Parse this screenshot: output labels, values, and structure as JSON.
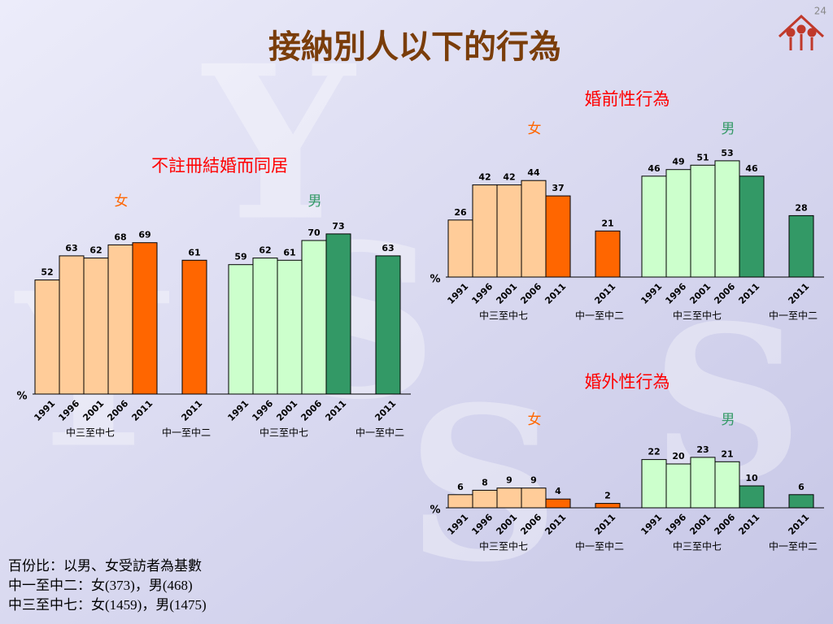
{
  "page_number": "24",
  "title": "接納別人以下的行為",
  "chart_data": [
    {
      "type": "bar",
      "title": "不註冊結婚而同居",
      "y_label": "%",
      "ylim": [
        0,
        80
      ],
      "categories": [
        "1991",
        "1996",
        "2001",
        "2006",
        "2011",
        "2011"
      ],
      "category_groups": [
        "中三至中七",
        "中一至中二"
      ],
      "series": [
        {
          "name": "女",
          "colors": [
            "#ffcc99",
            "#ffcc99",
            "#ffcc99",
            "#ffcc99",
            "#ff6600",
            "#ff6600"
          ],
          "values": [
            52,
            63,
            62,
            68,
            69,
            61
          ]
        },
        {
          "name": "男",
          "colors": [
            "#ccffcc",
            "#ccffcc",
            "#ccffcc",
            "#ccffcc",
            "#339966",
            "#339966"
          ],
          "values": [
            59,
            62,
            61,
            70,
            73,
            63
          ]
        }
      ]
    },
    {
      "type": "bar",
      "title": "婚前性行為",
      "y_label": "%",
      "ylim": [
        0,
        80
      ],
      "categories": [
        "1991",
        "1996",
        "2001",
        "2006",
        "2011",
        "2011"
      ],
      "category_groups": [
        "中三至中七",
        "中一至中二"
      ],
      "series": [
        {
          "name": "女",
          "colors": [
            "#ffcc99",
            "#ffcc99",
            "#ffcc99",
            "#ffcc99",
            "#ff6600",
            "#ff6600"
          ],
          "values": [
            26,
            42,
            42,
            44,
            37,
            21
          ]
        },
        {
          "name": "男",
          "colors": [
            "#ccffcc",
            "#ccffcc",
            "#ccffcc",
            "#ccffcc",
            "#339966",
            "#339966"
          ],
          "values": [
            46,
            49,
            51,
            53,
            46,
            28
          ]
        }
      ]
    },
    {
      "type": "bar",
      "title": "婚外性行為",
      "y_label": "%",
      "ylim": [
        0,
        80
      ],
      "categories": [
        "1991",
        "1996",
        "2001",
        "2006",
        "2011",
        "2011"
      ],
      "category_groups": [
        "中三至中七",
        "中一至中二"
      ],
      "series": [
        {
          "name": "女",
          "colors": [
            "#ffcc99",
            "#ffcc99",
            "#ffcc99",
            "#ffcc99",
            "#ff6600",
            "#ff6600"
          ],
          "values": [
            6,
            8,
            9,
            9,
            4,
            2
          ]
        },
        {
          "name": "男",
          "colors": [
            "#ccffcc",
            "#ccffcc",
            "#ccffcc",
            "#ccffcc",
            "#339966",
            "#339966"
          ],
          "values": [
            22,
            20,
            23,
            21,
            10,
            6
          ]
        }
      ]
    }
  ],
  "footnote": [
    "百份比：以男、女受訪者為基數",
    "中一至中二：女(373)，男(468)",
    "中三至中七：女(1459)，男(1475)"
  ]
}
